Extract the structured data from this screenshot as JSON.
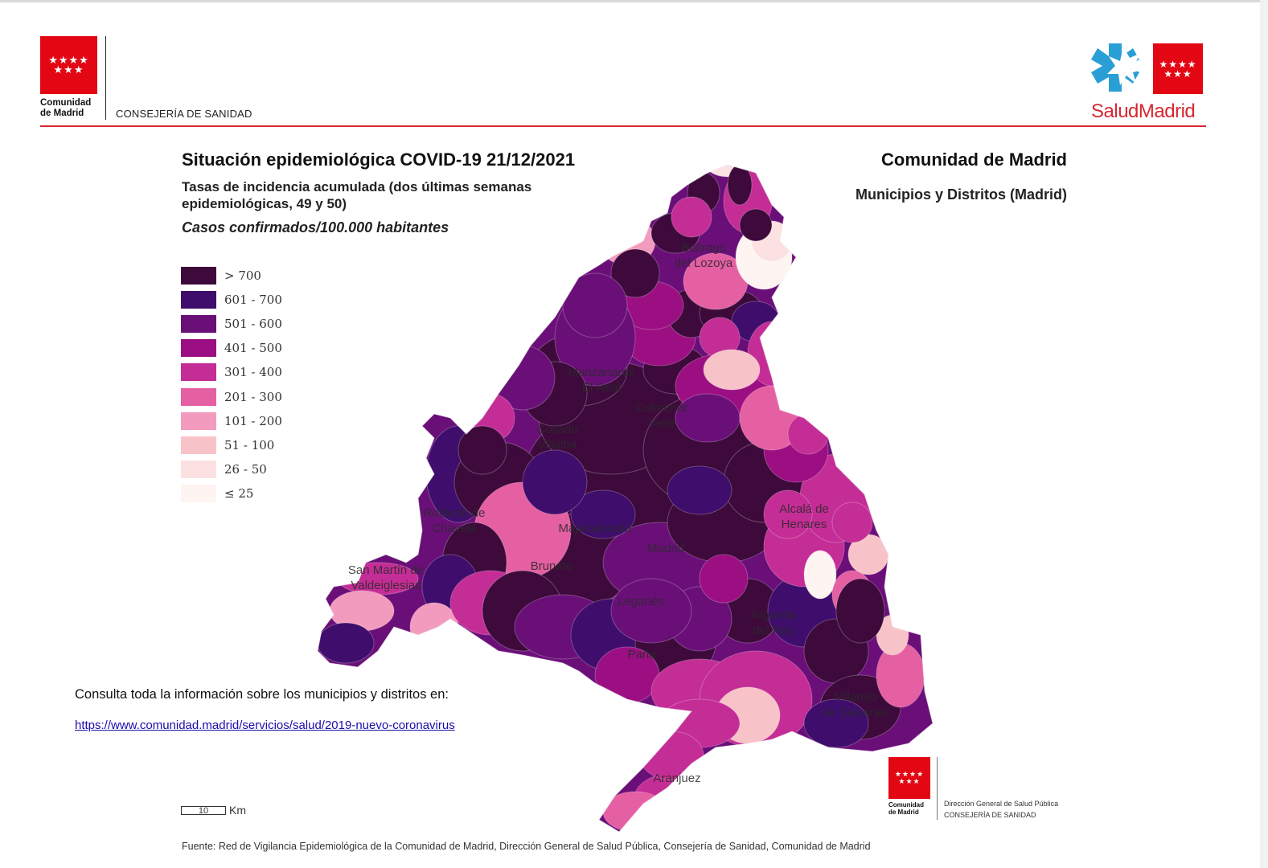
{
  "header": {
    "org_line1": "Comunidad",
    "org_line2": "de Madrid",
    "consejeria": "CONSEJERÍA DE SANIDAD",
    "stars": "★★★★\n★★★",
    "salud_part1": "Salud",
    "salud_part2": "Madrid"
  },
  "titles": {
    "title": "Situación epidemiológica COVID-19  21/12/2021",
    "subtitle": "Tasas de incidencia acumulada (dos últimas semanas epidemiológicas, 49 y 50)",
    "units": "Casos confirmados/100.000 habitantes",
    "region": "Comunidad de Madrid",
    "region_sub": "Municipios y Distritos (Madrid)"
  },
  "legend": [
    {
      "label": "> 700",
      "color": "#3d0a3b"
    },
    {
      "label": "601 - 700",
      "color": "#3f0d6b"
    },
    {
      "label": "501 - 600",
      "color": "#6a0f78"
    },
    {
      "label": "401 - 500",
      "color": "#9c0f82"
    },
    {
      "label": "301 - 400",
      "color": "#c42d95"
    },
    {
      "label": "201 - 300",
      "color": "#e55fa3"
    },
    {
      "label": "101 - 200",
      "color": "#f39bbe"
    },
    {
      "label": "51 - 100",
      "color": "#f8c3c8"
    },
    {
      "label": "26 - 50",
      "color": "#fbe1e1"
    },
    {
      "label": "≤ 25",
      "color": "#fef4f2"
    }
  ],
  "places": [
    {
      "name1": "Buitrago",
      "name2": "del Lozoya"
    },
    {
      "name1": "Manzanares",
      "name2": "El Real"
    },
    {
      "name1": "Colmenar",
      "name2": "Viejo"
    },
    {
      "name1": "Collado",
      "name2": "Villalba"
    },
    {
      "name1": "Robledo de",
      "name2": "Chavela"
    },
    {
      "name1": "Majadahonda",
      "name2": ""
    },
    {
      "name1": "Alcalá de",
      "name2": "Henares"
    },
    {
      "name1": "Madrid",
      "name2": ""
    },
    {
      "name1": "San Martín de",
      "name2": "Valdeiglesias"
    },
    {
      "name1": "Brunete",
      "name2": ""
    },
    {
      "name1": "Leganés",
      "name2": ""
    },
    {
      "name1": "Arganda",
      "name2": "del Rey"
    },
    {
      "name1": "Parla",
      "name2": ""
    },
    {
      "name1": "Villarejo",
      "name2": "de Salvanés"
    },
    {
      "name1": "Aranjuez",
      "name2": ""
    }
  ],
  "info": {
    "text": "Consulta toda la información sobre los municipios y distritos en:",
    "link": "https://www.comunidad.madrid/servicios/salud/2019-nuevo-coronavirus"
  },
  "scale": {
    "value": "10",
    "unit": "Km"
  },
  "footer": {
    "org_line1": "Comunidad",
    "org_line2": "de Madrid",
    "line1": "Dirección General de Salud Pública",
    "line2": "CONSEJERÍA DE SANIDAD",
    "source": "Fuente: Red de Vigilancia Epidemiológica de la Comunidad de Madrid, Dirección General de Salud Pública, Consejería de Sanidad, Comunidad de Madrid"
  }
}
